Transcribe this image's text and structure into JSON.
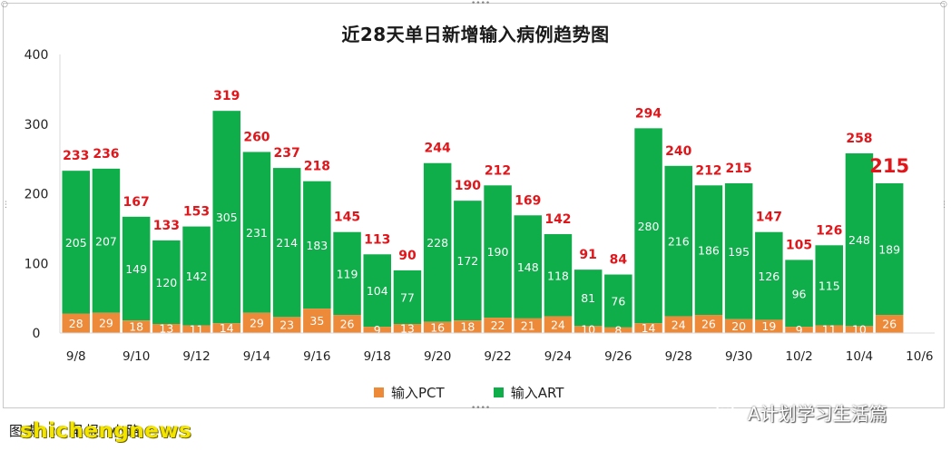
{
  "chart_data": {
    "type": "bar",
    "stacked": true,
    "title": "近28天单日新增输入病例趋势图",
    "xlabel": "",
    "ylabel": "",
    "ylim": [
      0,
      400
    ],
    "yticks": [
      0,
      100,
      200,
      300,
      400
    ],
    "grid": false,
    "legend_position": "bottom",
    "x_tick_labels": [
      "9/8",
      "9/10",
      "9/12",
      "9/14",
      "9/16",
      "9/18",
      "9/20",
      "9/22",
      "9/24",
      "9/26",
      "9/28",
      "9/30",
      "10/2",
      "10/4",
      "10/6"
    ],
    "categories": [
      "9/8",
      "9/9",
      "9/10",
      "9/11",
      "9/12",
      "9/13",
      "9/14",
      "9/15",
      "9/16",
      "9/17",
      "9/18",
      "9/19",
      "9/20",
      "9/21",
      "9/22",
      "9/23",
      "9/24",
      "9/25",
      "9/26",
      "9/27",
      "9/28",
      "9/29",
      "9/30",
      "10/1",
      "10/2",
      "10/3",
      "10/4",
      "10/5"
    ],
    "series": [
      {
        "name": "输入PCT",
        "color": "#ed8a3a",
        "values": [
          28,
          29,
          18,
          13,
          11,
          14,
          29,
          23,
          35,
          26,
          9,
          13,
          16,
          18,
          22,
          21,
          24,
          10,
          8,
          14,
          24,
          26,
          20,
          19,
          9,
          11,
          10,
          26
        ]
      },
      {
        "name": "输入ART",
        "color": "#0fae4b",
        "values": [
          205,
          207,
          149,
          120,
          142,
          305,
          231,
          214,
          183,
          119,
          104,
          77,
          228,
          172,
          190,
          148,
          118,
          81,
          76,
          280,
          216,
          186,
          195,
          126,
          96,
          115,
          248,
          189
        ]
      }
    ],
    "totals": [
      233,
      236,
      167,
      133,
      153,
      319,
      260,
      237,
      218,
      145,
      113,
      90,
      244,
      190,
      212,
      169,
      142,
      91,
      84,
      294,
      240,
      212,
      215,
      147,
      105,
      126,
      258,
      215
    ],
    "total_label_color": "#e0161b"
  },
  "watermarks": {
    "site": "shichengnews",
    "footer": "图表 : 早报 小路",
    "account": "A计划学习生活篇",
    "account_icon": "wechat-icon"
  },
  "colors": {
    "bar_label": "#ffffff",
    "axis": "#d9d9d9"
  }
}
